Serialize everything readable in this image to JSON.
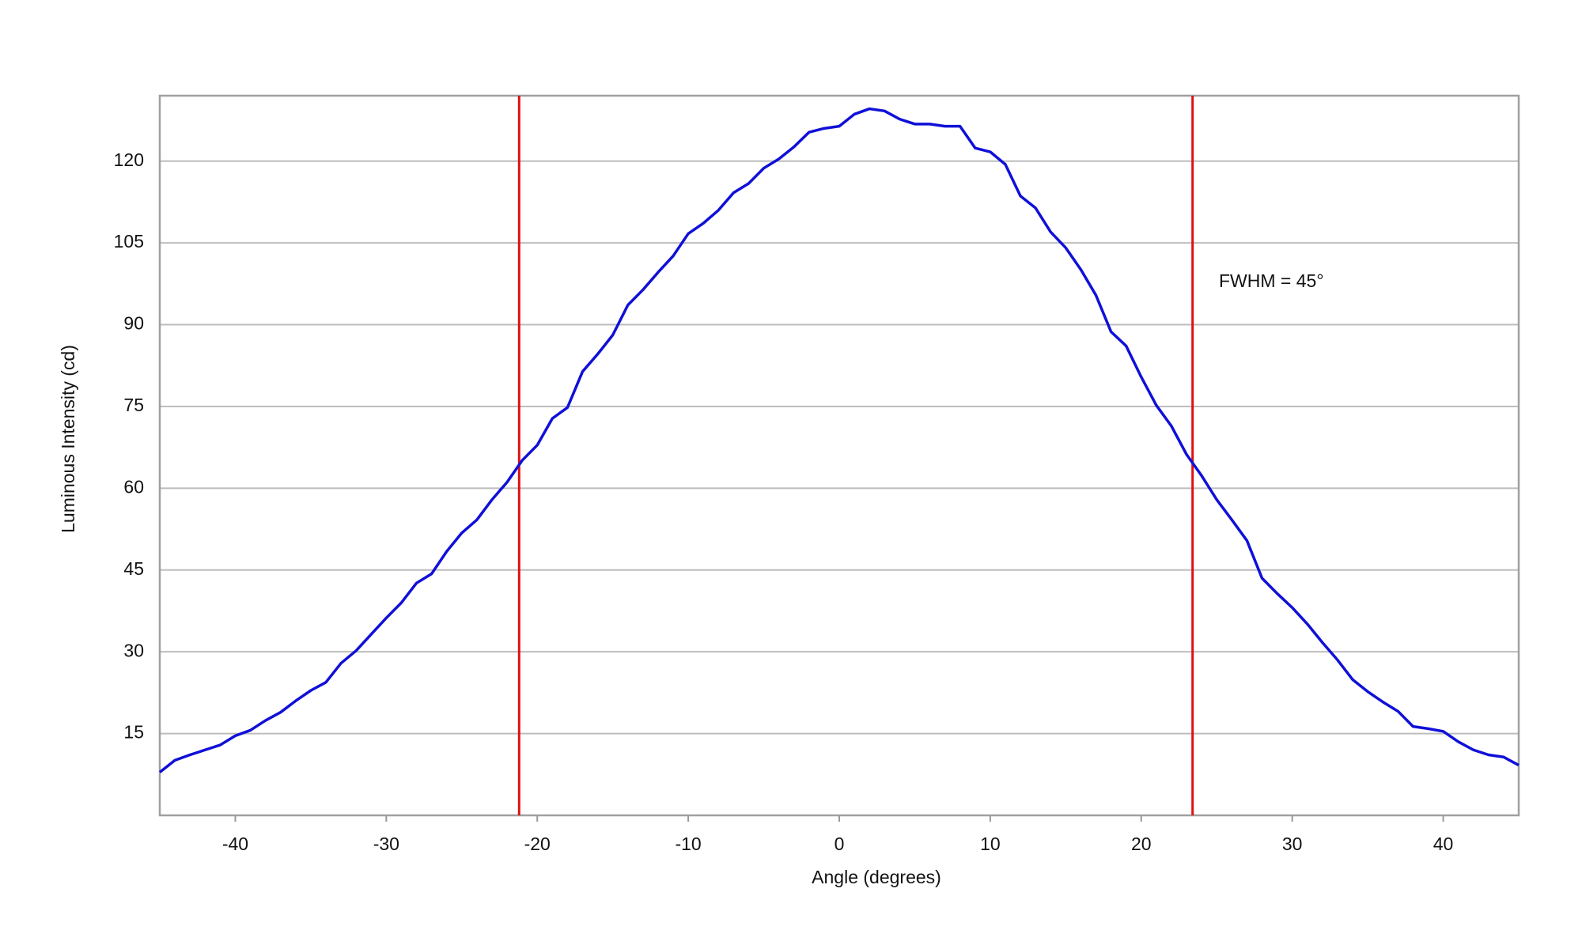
{
  "chart_data": {
    "type": "line",
    "x_label": "Angle (degrees)",
    "y_label": "Luminous Intensity (cd)",
    "annotation": "FWHM = 45°",
    "x": [
      -45,
      -44,
      -43,
      -42,
      -41,
      -40,
      -39,
      -38,
      -37,
      -36,
      -35,
      -34,
      -33,
      -32,
      -31,
      -30,
      -29,
      -28,
      -27,
      -26,
      -25,
      -24,
      -23,
      -22,
      -21,
      -20,
      -19,
      -18,
      -17,
      -16,
      -15,
      -14,
      -13,
      -12,
      -11,
      -10,
      -9,
      -8,
      -7,
      -6,
      -5,
      -4,
      -3,
      -2,
      -1,
      0,
      1,
      2,
      3,
      4,
      5,
      6,
      7,
      8,
      9,
      10,
      11,
      12,
      13,
      14,
      15,
      16,
      17,
      18,
      19,
      20,
      21,
      22,
      23,
      24,
      25,
      26,
      27,
      28,
      29,
      30,
      31,
      32,
      33,
      34,
      35,
      36,
      37,
      38,
      39,
      40,
      41,
      42,
      43,
      44,
      45
    ],
    "series": [
      {
        "color": "#1010d8",
        "values": [
          7.9,
          10.1,
          11.1,
          12,
          12.9,
          14.6,
          15.6,
          17.4,
          18.9,
          21,
          22.9,
          24.4,
          27.9,
          30.2,
          33.2,
          36.2,
          39,
          42.6,
          44.3,
          48.4,
          51.8,
          54.2,
          57.9,
          61.1,
          65.1,
          67.9,
          72.8,
          74.8,
          81.4,
          84.6,
          88.1,
          93.6,
          96.4,
          99.6,
          102.6,
          106.7,
          108.6,
          111,
          114.2,
          115.9,
          118.7,
          120.4,
          122.6,
          125.3,
          126,
          126.4,
          128.6,
          129.6,
          129.2,
          127.7,
          126.8,
          126.8,
          126.4,
          126.4,
          122.4,
          121.7,
          119.4,
          113.6,
          111.4,
          107,
          104.1,
          100.1,
          95.4,
          88.7,
          86.1,
          80.4,
          75.2,
          71.4,
          66.2,
          62.3,
          57.9,
          54.2,
          50.4,
          43.5,
          40.7,
          38.1,
          35.1,
          31.7,
          28.5,
          24.9,
          22.7,
          20.8,
          19.1,
          16.3,
          15.9,
          15.4,
          13.5,
          12,
          11.1,
          10.7,
          9.2
        ]
      }
    ],
    "vertical_lines": [
      {
        "value": -21.2,
        "color": "#e01010"
      },
      {
        "value": 23.4,
        "color": "#e01010"
      }
    ],
    "xlim": [
      -45,
      45
    ],
    "ylim": [
      0,
      132
    ],
    "xticks": [
      -40,
      -30,
      -20,
      -10,
      0,
      10,
      20,
      30,
      40
    ],
    "yticks": [
      15,
      30,
      45,
      60,
      75,
      90,
      105,
      120
    ],
    "grid": true
  }
}
